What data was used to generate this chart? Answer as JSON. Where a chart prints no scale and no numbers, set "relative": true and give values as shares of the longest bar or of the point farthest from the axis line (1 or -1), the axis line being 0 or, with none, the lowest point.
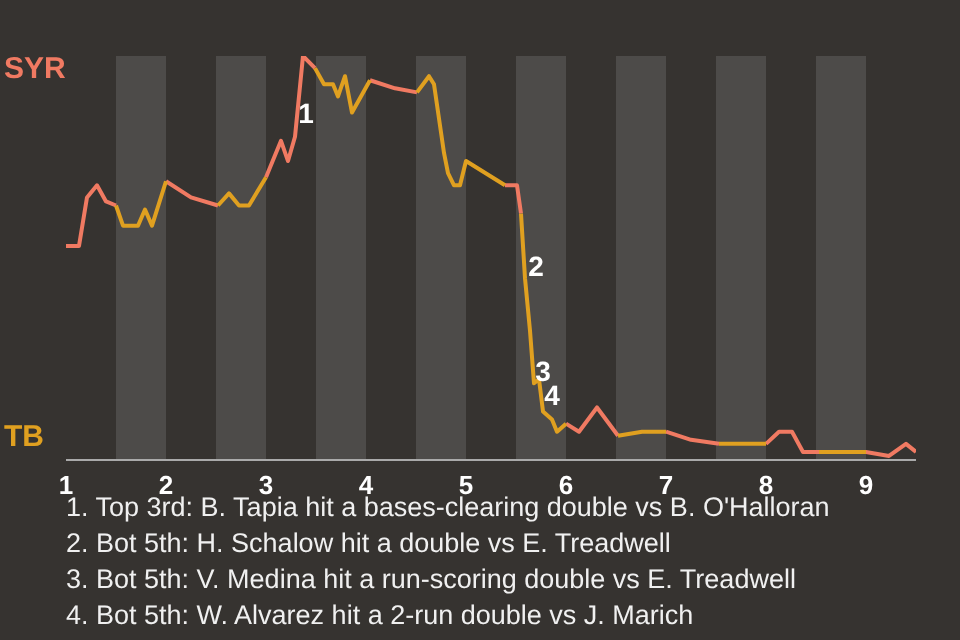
{
  "chart_data": {
    "type": "line",
    "relative": true,
    "x": [
      1,
      1.13,
      1.21,
      1.31,
      1.4,
      1.5,
      1.57,
      1.72,
      1.79,
      1.86,
      2,
      2.25,
      2.52,
      2.63,
      2.73,
      2.83,
      3,
      3.15,
      3.22,
      3.29,
      3.37,
      3.49,
      3.58,
      3.67,
      3.72,
      3.79,
      3.86,
      4.04,
      4.29,
      4.51,
      4.63,
      4.68,
      4.78,
      4.82,
      4.88,
      4.94,
      5,
      5.39,
      5.51,
      5.55,
      5.59,
      5.64,
      5.68,
      5.73,
      5.77,
      5.86,
      5.91,
      6,
      6.13,
      6.31,
      6.52,
      6.76,
      7,
      7.25,
      7.53,
      7.69,
      8,
      8.13,
      8.26,
      8.37,
      8.53,
      9,
      9.23,
      9.4,
      9.5
    ],
    "xlim": [
      1,
      9.5
    ],
    "xticks": [
      1,
      2,
      3,
      4,
      5,
      6,
      7,
      8,
      9
    ],
    "series": [
      {
        "color": "#f07a62",
        "values": [
          0.53,
          0.53,
          0.65,
          0.68,
          0.64,
          0.63,
          null,
          null,
          null,
          null,
          0.69,
          0.65,
          0.63,
          null,
          null,
          null,
          0.7,
          0.79,
          0.74,
          0.8,
          1,
          0.97,
          null,
          null,
          null,
          null,
          null,
          0.94,
          0.92,
          0.91,
          null,
          null,
          null,
          null,
          null,
          null,
          null,
          0.68,
          0.68,
          0.61,
          null,
          null,
          null,
          null,
          null,
          null,
          null,
          0.09,
          0.07,
          0.13,
          0.06,
          null,
          0.07,
          0.05,
          0.04,
          null,
          0.04,
          0.07,
          0.07,
          0.02,
          0.02,
          0.02,
          0.01,
          0.04,
          0.02
        ]
      },
      {
        "color": "#e0a020",
        "values": [
          null,
          null,
          null,
          null,
          null,
          0.63,
          0.58,
          0.58,
          0.62,
          0.58,
          0.69,
          null,
          0.63,
          0.66,
          0.63,
          0.63,
          0.7,
          null,
          null,
          null,
          null,
          0.97,
          0.93,
          0.93,
          0.9,
          0.95,
          0.86,
          0.94,
          null,
          0.91,
          0.95,
          0.93,
          0.76,
          0.71,
          0.68,
          0.68,
          0.74,
          0.68,
          null,
          0.61,
          0.45,
          0.32,
          0.19,
          0.2,
          0.12,
          0.1,
          0.07,
          0.09,
          null,
          null,
          0.06,
          0.07,
          0.07,
          null,
          0.04,
          0.04,
          0.04,
          null,
          null,
          null,
          0.02,
          0.02,
          null,
          null,
          null
        ]
      }
    ],
    "bands": [
      {
        "axis": "x",
        "from": 1.5,
        "to": 2,
        "color": "#4d4b49"
      },
      {
        "axis": "x",
        "from": 2.5,
        "to": 3,
        "color": "#4d4b49"
      },
      {
        "axis": "x",
        "from": 3.5,
        "to": 4,
        "color": "#4d4b49"
      },
      {
        "axis": "x",
        "from": 4.5,
        "to": 5,
        "color": "#4d4b49"
      },
      {
        "axis": "x",
        "from": 5.5,
        "to": 6,
        "color": "#4d4b49"
      },
      {
        "axis": "x",
        "from": 6.5,
        "to": 7,
        "color": "#4d4b49"
      },
      {
        "axis": "x",
        "from": 7.5,
        "to": 8,
        "color": "#4d4b49"
      },
      {
        "axis": "x",
        "from": 8.5,
        "to": 9,
        "color": "#4d4b49"
      }
    ],
    "annotations": [
      "SYR",
      "TB",
      {
        "text": "1",
        "x": 3.4,
        "y": 0.86
      },
      {
        "text": "2",
        "x": 5.7,
        "y": 0.48
      },
      {
        "text": "3",
        "x": 5.77,
        "y": 0.22
      },
      {
        "text": "4",
        "x": 5.86,
        "y": 0.16
      },
      "1. Top 3rd: B. Tapia hit a bases-clearing double vs B. O'Halloran",
      "2. Bot 5th: H. Schalow hit a double vs E. Treadwell",
      "3. Bot 5th: V. Medina hit a run-scoring double vs E. Treadwell",
      "4. Bot 5th: W. Alvarez hit a 2-run double vs J. Marich"
    ]
  }
}
